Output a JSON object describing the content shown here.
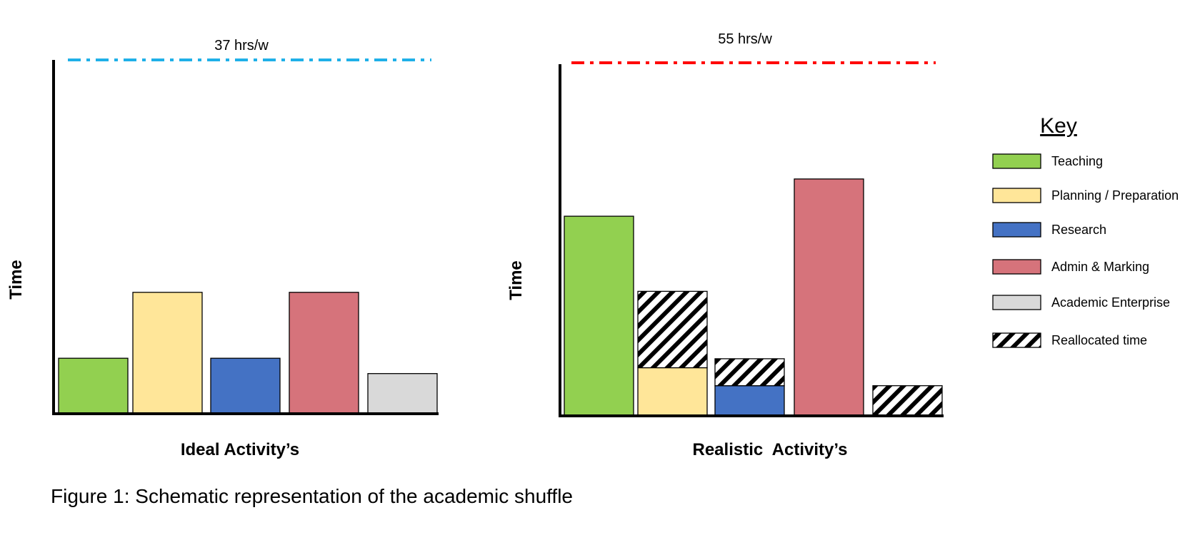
{
  "caption": "Figure 1: Schematic representation of the academic shuffle",
  "key": {
    "title": "Key",
    "items": [
      {
        "label": "Teaching",
        "color": "#92d050",
        "pattern": false
      },
      {
        "label": "Planning / Preparation",
        "color": "#ffe699",
        "pattern": false
      },
      {
        "label": "Research",
        "color": "#4472c4",
        "pattern": false
      },
      {
        "label": "Admin & Marking",
        "color": "#d6737b",
        "pattern": false
      },
      {
        "label": "Academic Enterprise",
        "color": "#d9d9d9",
        "pattern": false
      },
      {
        "label": "Reallocated time",
        "color": "#000000",
        "pattern": true
      }
    ]
  },
  "chart_data": [
    {
      "type": "bar",
      "xlabel": "Ideal Activity’s",
      "ylabel": "Time",
      "limit_label": "37 hrs/w",
      "limit_color": "#1fb0e8",
      "limit_value": 37,
      "ylim": [
        0,
        37
      ],
      "categories": [
        "Teaching",
        "Planning / Preparation",
        "Research",
        "Admin & Marking",
        "Academic Enterprise"
      ],
      "bars": [
        {
          "category": "Teaching",
          "segments": [
            {
              "kind": "Teaching",
              "value": 5.8
            }
          ]
        },
        {
          "category": "Planning / Preparation",
          "segments": [
            {
              "kind": "Planning / Preparation",
              "value": 12.7
            }
          ]
        },
        {
          "category": "Research",
          "segments": [
            {
              "kind": "Research",
              "value": 5.8
            }
          ]
        },
        {
          "category": "Admin & Marking",
          "segments": [
            {
              "kind": "Admin & Marking",
              "value": 12.7
            }
          ]
        },
        {
          "category": "Academic Enterprise",
          "segments": [
            {
              "kind": "Academic Enterprise",
              "value": 4.2
            }
          ]
        }
      ]
    },
    {
      "type": "bar",
      "xlabel": "Realistic  Activity’s",
      "ylabel": "Time",
      "limit_label": "55 hrs/w",
      "limit_color": "#ff0000",
      "limit_value": 55,
      "ylim": [
        0,
        55
      ],
      "categories": [
        "Teaching",
        "Planning / Preparation",
        "Research",
        "Admin & Marking",
        "Academic Enterprise"
      ],
      "bars": [
        {
          "category": "Teaching",
          "segments": [
            {
              "kind": "Teaching",
              "value": 31.1
            }
          ]
        },
        {
          "category": "Planning / Preparation",
          "segments": [
            {
              "kind": "Planning / Preparation",
              "value": 7.5
            },
            {
              "kind": "Reallocated time",
              "value": 11.9
            }
          ]
        },
        {
          "category": "Research",
          "segments": [
            {
              "kind": "Research",
              "value": 4.7
            },
            {
              "kind": "Reallocated time",
              "value": 4.2
            }
          ]
        },
        {
          "category": "Admin & Marking",
          "segments": [
            {
              "kind": "Admin & Marking",
              "value": 36.9
            }
          ]
        },
        {
          "category": "Academic Enterprise",
          "segments": [
            {
              "kind": "Reallocated time",
              "value": 4.7
            }
          ]
        }
      ]
    }
  ]
}
